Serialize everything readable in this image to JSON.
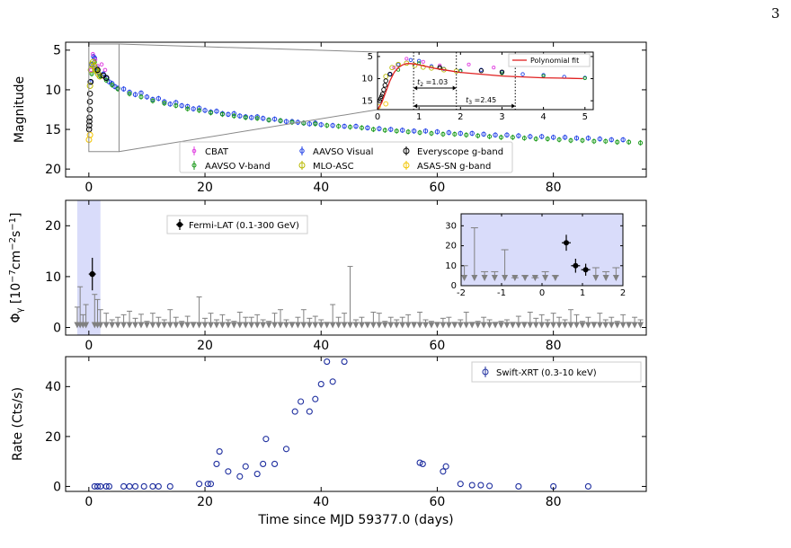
{
  "page_number": "3",
  "colors": {
    "cbat": "#e040e0",
    "aavso_v": "#1a9a1a",
    "aavso_vis": "#1f3fe6",
    "mlo": "#b8b800",
    "everyscope": "#000000",
    "asassn": "#f2c400",
    "fermi": "#000000",
    "upper_limit": "#808080",
    "xrt": "#1f2f9f",
    "fit": "#e02020",
    "shade": "#d9dcfa"
  },
  "chart_data": [
    {
      "type": "scatter",
      "ylabel": "Magnitude",
      "xlim": [
        -4,
        96
      ],
      "ylim": [
        21,
        4
      ],
      "inverted_y": true,
      "x_ticks": [
        0,
        20,
        40,
        60,
        80
      ],
      "y_ticks": [
        5,
        10,
        15,
        20
      ],
      "legend": {
        "placement": "bottom-center",
        "entries": [
          "CBAT",
          "AAVSO V-band",
          "AAVSO Visual",
          "MLO-ASC",
          "Everyscope g-band",
          "ASAS-SN g-band"
        ]
      },
      "series": [
        {
          "name": "AAVSO Visual",
          "x": [
            0.3,
            0.5,
            0.8,
            1.0,
            1.3,
            1.6,
            2.0,
            2.5,
            3.0,
            3.5,
            4,
            4.5,
            5,
            6,
            7,
            8,
            9,
            10,
            11,
            12,
            13,
            14,
            15,
            16,
            17,
            18,
            19,
            20,
            21,
            22,
            23,
            24,
            25,
            26,
            27,
            28,
            29,
            30,
            31,
            32,
            33,
            34,
            35,
            36,
            37,
            38,
            39,
            40,
            42,
            44,
            46,
            48,
            50,
            52,
            54,
            56,
            58,
            60,
            62,
            64,
            66,
            68,
            70,
            72,
            74,
            76,
            78,
            80,
            82,
            84,
            86,
            88,
            90,
            92
          ],
          "y": [
            9.0,
            6.8,
            5.8,
            6.0,
            7.2,
            7.8,
            8.2,
            8.0,
            8.5,
            9.0,
            9.2,
            9.6,
            9.8,
            9.9,
            10.3,
            10.6,
            10.4,
            10.9,
            11.2,
            11.1,
            11.5,
            11.8,
            11.6,
            12.0,
            12.1,
            12.4,
            12.3,
            12.6,
            12.8,
            12.7,
            13.0,
            13.1,
            13.0,
            13.3,
            13.4,
            13.5,
            13.4,
            13.6,
            13.8,
            13.7,
            13.9,
            14.0,
            14.0,
            14.1,
            14.2,
            14.3,
            14.2,
            14.4,
            14.5,
            14.6,
            14.6,
            14.8,
            14.9,
            15.0,
            15.1,
            15.2,
            15.2,
            15.3,
            15.4,
            15.5,
            15.5,
            15.6,
            15.7,
            15.7,
            15.8,
            15.9,
            15.9,
            16.0,
            16.0,
            16.1,
            16.1,
            16.2,
            16.3,
            16.3
          ]
        },
        {
          "name": "AAVSO V-band",
          "x": [
            0.5,
            1.0,
            1.5,
            2,
            3,
            4,
            5,
            7,
            9,
            11,
            13,
            15,
            17,
            19,
            21,
            23,
            25,
            27,
            29,
            31,
            33,
            35,
            37,
            39,
            41,
            43,
            45,
            47,
            49,
            51,
            53,
            55,
            57,
            59,
            61,
            63,
            65,
            67,
            69,
            71,
            73,
            75,
            77,
            79,
            81,
            83,
            85,
            87,
            89,
            91,
            93,
            95
          ],
          "y": [
            8.0,
            6.5,
            7.5,
            8.3,
            8.8,
            9.4,
            9.9,
            10.5,
            10.9,
            11.4,
            11.7,
            12.0,
            12.4,
            12.6,
            12.9,
            13.1,
            13.3,
            13.5,
            13.6,
            13.8,
            13.9,
            14.1,
            14.2,
            14.3,
            14.5,
            14.6,
            14.7,
            14.8,
            15.0,
            15.1,
            15.2,
            15.3,
            15.4,
            15.5,
            15.6,
            15.6,
            15.7,
            15.8,
            15.9,
            16.0,
            16.0,
            16.1,
            16.2,
            16.2,
            16.3,
            16.4,
            16.4,
            16.5,
            16.5,
            16.6,
            16.6,
            16.7
          ]
        },
        {
          "name": "CBAT",
          "x": [
            0.4,
            0.7,
            1.1,
            1.5,
            2.2,
            2.8
          ],
          "y": [
            7.5,
            5.5,
            6.2,
            7.0,
            6.8,
            7.5
          ]
        },
        {
          "name": "MLO-ASC",
          "x": [
            0.2,
            0.35,
            0.5,
            0.7,
            0.9,
            1.1,
            1.3,
            1.6,
            1.9
          ],
          "y": [
            9.5,
            7.5,
            6.8,
            6.5,
            7.0,
            7.4,
            7.6,
            8.0,
            8.3
          ]
        },
        {
          "name": "Everyscope g-band",
          "x": [
            0.05,
            0.08,
            0.1,
            0.12,
            0.15,
            0.18,
            0.2,
            0.3,
            1.5,
            2.5,
            3.0
          ],
          "y": [
            15.0,
            14.5,
            14.0,
            13.5,
            12.5,
            11.5,
            10.5,
            9.0,
            7.5,
            8.2,
            8.5
          ]
        },
        {
          "name": "ASAS-SN g-band",
          "x": [
            0.02,
            0.2
          ],
          "y": [
            16.3,
            15.7
          ]
        }
      ],
      "inset": {
        "xlim": [
          0,
          5.2
        ],
        "ylim": [
          17,
          4
        ],
        "x_ticks": [
          0,
          1,
          2,
          3,
          4,
          5
        ],
        "y_ticks": [
          5,
          10,
          15
        ],
        "legend": "Polynomial fit",
        "annotations": [
          {
            "label_var": "t",
            "label_sub": "2",
            "label_value": "=1.03",
            "x0": 0.87,
            "x1": 1.9
          },
          {
            "label_var": "t",
            "label_sub": "3",
            "label_value": "=2.45",
            "x0": 0.87,
            "x1": 3.32
          }
        ],
        "fit_x": [
          0.0,
          0.1,
          0.2,
          0.3,
          0.4,
          0.5,
          0.6,
          0.7,
          0.8,
          0.9,
          1.0,
          1.2,
          1.4,
          1.6,
          1.8,
          2.0,
          2.5,
          3.0,
          3.5,
          4.0,
          4.5,
          4.95
        ],
        "fit_y": [
          17,
          15.5,
          13,
          10.5,
          8.6,
          7.5,
          6.9,
          6.6,
          6.6,
          6.7,
          6.9,
          7.3,
          7.7,
          8.0,
          8.3,
          8.6,
          9.0,
          9.4,
          9.6,
          9.8,
          9.9,
          10.0
        ]
      }
    },
    {
      "type": "scatter",
      "ylabel_main": "Φ",
      "ylabel_sub": "γ",
      "ylabel_units": " [10",
      "ylabel_exp1": "−7",
      "ylabel_mid": "cm",
      "ylabel_exp2": "−2",
      "ylabel_mid2": "s",
      "ylabel_exp3": "−1",
      "ylabel_end": "]",
      "xlim": [
        -4,
        96
      ],
      "ylim": [
        -1.5,
        25
      ],
      "x_ticks": [
        0,
        20,
        40,
        60,
        80
      ],
      "y_ticks": [
        0,
        10,
        20
      ],
      "legend": {
        "placement": "top-left",
        "entries": [
          "Fermi-LAT (0.1-300 GeV)"
        ]
      },
      "shaded_range": [
        -2,
        2
      ],
      "detections": [
        {
          "x": 0.6,
          "y": 10.5,
          "yerr": 3.2
        }
      ],
      "upper_limits_x": [
        -2.0,
        -1.5,
        -1.0,
        -0.5,
        1.0,
        1.5,
        2,
        3,
        4,
        5,
        6,
        7,
        8,
        9,
        10,
        11,
        12,
        13,
        14,
        15,
        16,
        17,
        18,
        19,
        20,
        21,
        22,
        23,
        24,
        25,
        26,
        27,
        28,
        29,
        30,
        31,
        32,
        33,
        34,
        35,
        36,
        37,
        38,
        39,
        40,
        41,
        42,
        43,
        44,
        45,
        46,
        47,
        48,
        49,
        50,
        51,
        52,
        53,
        54,
        55,
        56,
        57,
        58,
        59,
        60,
        61,
        62,
        63,
        64,
        65,
        66,
        67,
        68,
        69,
        70,
        71,
        72,
        73,
        74,
        75,
        76,
        77,
        78,
        79,
        80,
        81,
        82,
        83,
        84,
        85,
        86,
        87,
        88,
        89,
        90,
        91,
        92,
        93,
        94,
        95
      ],
      "upper_limits_y": [
        4.0,
        8.0,
        2.5,
        4.5,
        6.5,
        5.5,
        3.5,
        2.8,
        1.5,
        2.0,
        2.5,
        3.2,
        1.8,
        2.6,
        1.2,
        2.8,
        2.0,
        1.5,
        3.5,
        2.0,
        1.2,
        2.2,
        1.0,
        6.0,
        1.8,
        2.8,
        1.5,
        2.5,
        1.5,
        1.2,
        3.0,
        2.0,
        2.0,
        2.5,
        1.5,
        1.2,
        2.8,
        3.5,
        1.5,
        1.0,
        2.0,
        3.5,
        1.8,
        2.2,
        1.5,
        1.0,
        4.5,
        2.0,
        2.8,
        12.0,
        1.5,
        2.0,
        1.0,
        3.0,
        2.8,
        1.2,
        2.0,
        1.5,
        2.0,
        2.5,
        1.0,
        3.0,
        1.5,
        1.2,
        1.0,
        1.8,
        2.0,
        1.0,
        1.5,
        3.0,
        1.0,
        1.2,
        2.0,
        1.5,
        1.0,
        1.2,
        1.5,
        1.0,
        2.2,
        1.0,
        3.0,
        1.8,
        2.5,
        1.5,
        2.8,
        2.0,
        1.5,
        3.5,
        2.5,
        1.2,
        2.0,
        1.0,
        2.8,
        1.5,
        2.0,
        1.2,
        2.5,
        1.0,
        2.0,
        1.5
      ],
      "inset": {
        "xlim": [
          -2,
          2
        ],
        "ylim": [
          0,
          36
        ],
        "x_ticks": [
          -2,
          -1,
          0,
          1,
          2
        ],
        "y_ticks": [
          0,
          10,
          20,
          30
        ],
        "detections": [
          {
            "x": 0.6,
            "y": 21.5,
            "yerr": 4
          },
          {
            "x": 0.83,
            "y": 10,
            "yerr": 3.5
          },
          {
            "x": 1.08,
            "y": 8,
            "yerr": 3
          }
        ],
        "upper_limits_x": [
          -1.92,
          -1.67,
          -1.42,
          -1.17,
          -0.92,
          -0.67,
          -0.42,
          -0.17,
          0.08,
          0.33,
          1.33,
          1.58,
          1.83
        ],
        "upper_limits_y": [
          10,
          29,
          7,
          7,
          18,
          4,
          5,
          4,
          7,
          5,
          9,
          7,
          9
        ]
      }
    },
    {
      "type": "scatter",
      "xlabel": "Time since MJD 59377.0 (days)",
      "ylabel": "Rate (Cts/s)",
      "xlim": [
        -4,
        96
      ],
      "ylim": [
        -2,
        52
      ],
      "x_ticks": [
        0,
        20,
        40,
        60,
        80
      ],
      "y_ticks": [
        0,
        20,
        40
      ],
      "legend": {
        "placement": "top-right",
        "entries": [
          "Swift-XRT (0.3-10 keV)"
        ]
      },
      "x": [
        1,
        1.5,
        2,
        3,
        3.5,
        6,
        7,
        8,
        9.5,
        11,
        12,
        14,
        19,
        20.5,
        21,
        22,
        22.5,
        24,
        26,
        27,
        29,
        30,
        30.5,
        32,
        34,
        35.5,
        36.5,
        38,
        39,
        40,
        41,
        42,
        44,
        57,
        57.5,
        61,
        61.5,
        64,
        66,
        67.5,
        69,
        74,
        80,
        86
      ],
      "y": [
        0,
        0,
        0,
        0,
        0,
        0,
        0,
        0,
        0,
        0,
        0,
        0,
        1,
        1,
        1,
        9,
        14,
        6,
        4,
        8,
        5,
        9,
        19,
        9,
        15,
        30,
        34,
        30,
        35,
        41,
        50,
        42,
        50,
        9.5,
        9,
        6,
        8,
        1,
        0.5,
        0.5,
        0.2,
        0,
        0,
        0
      ]
    }
  ]
}
